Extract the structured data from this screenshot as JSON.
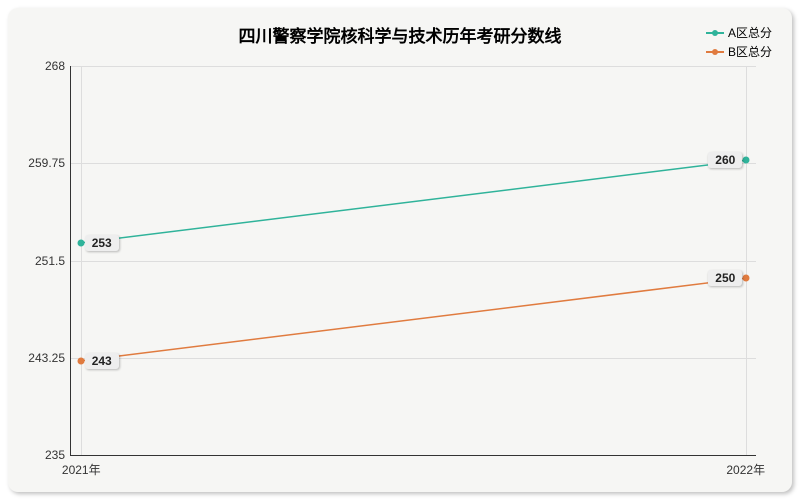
{
  "chart": {
    "title": "四川警察学院核科学与技术历年考研分数线",
    "title_fontsize": 17,
    "background_color": "#f6f6f4",
    "grid_color": "#dddddd",
    "axis_color": "#333333",
    "label_fontsize": 12,
    "ylim": [
      235,
      268
    ],
    "yticks": [
      235,
      243.25,
      251.5,
      259.75,
      268
    ],
    "ytick_labels": [
      "235",
      "243.25",
      "251.5",
      "259.75",
      "268"
    ],
    "xcategories": [
      "2021年",
      "2022年"
    ],
    "xpositions_pct": [
      1.5,
      98.5
    ],
    "series": [
      {
        "name": "A区总分",
        "color": "#2fb39a",
        "line_width": 1.5,
        "values": [
          253,
          260
        ]
      },
      {
        "name": "B区总分",
        "color": "#e07b3f",
        "line_width": 1.5,
        "values": [
          243,
          250
        ]
      }
    ],
    "value_labels": [
      {
        "series": 0,
        "point": 0,
        "text": "253",
        "side": "left"
      },
      {
        "series": 0,
        "point": 1,
        "text": "260",
        "side": "right"
      },
      {
        "series": 1,
        "point": 0,
        "text": "243",
        "side": "left"
      },
      {
        "series": 1,
        "point": 1,
        "text": "250",
        "side": "right"
      }
    ]
  }
}
